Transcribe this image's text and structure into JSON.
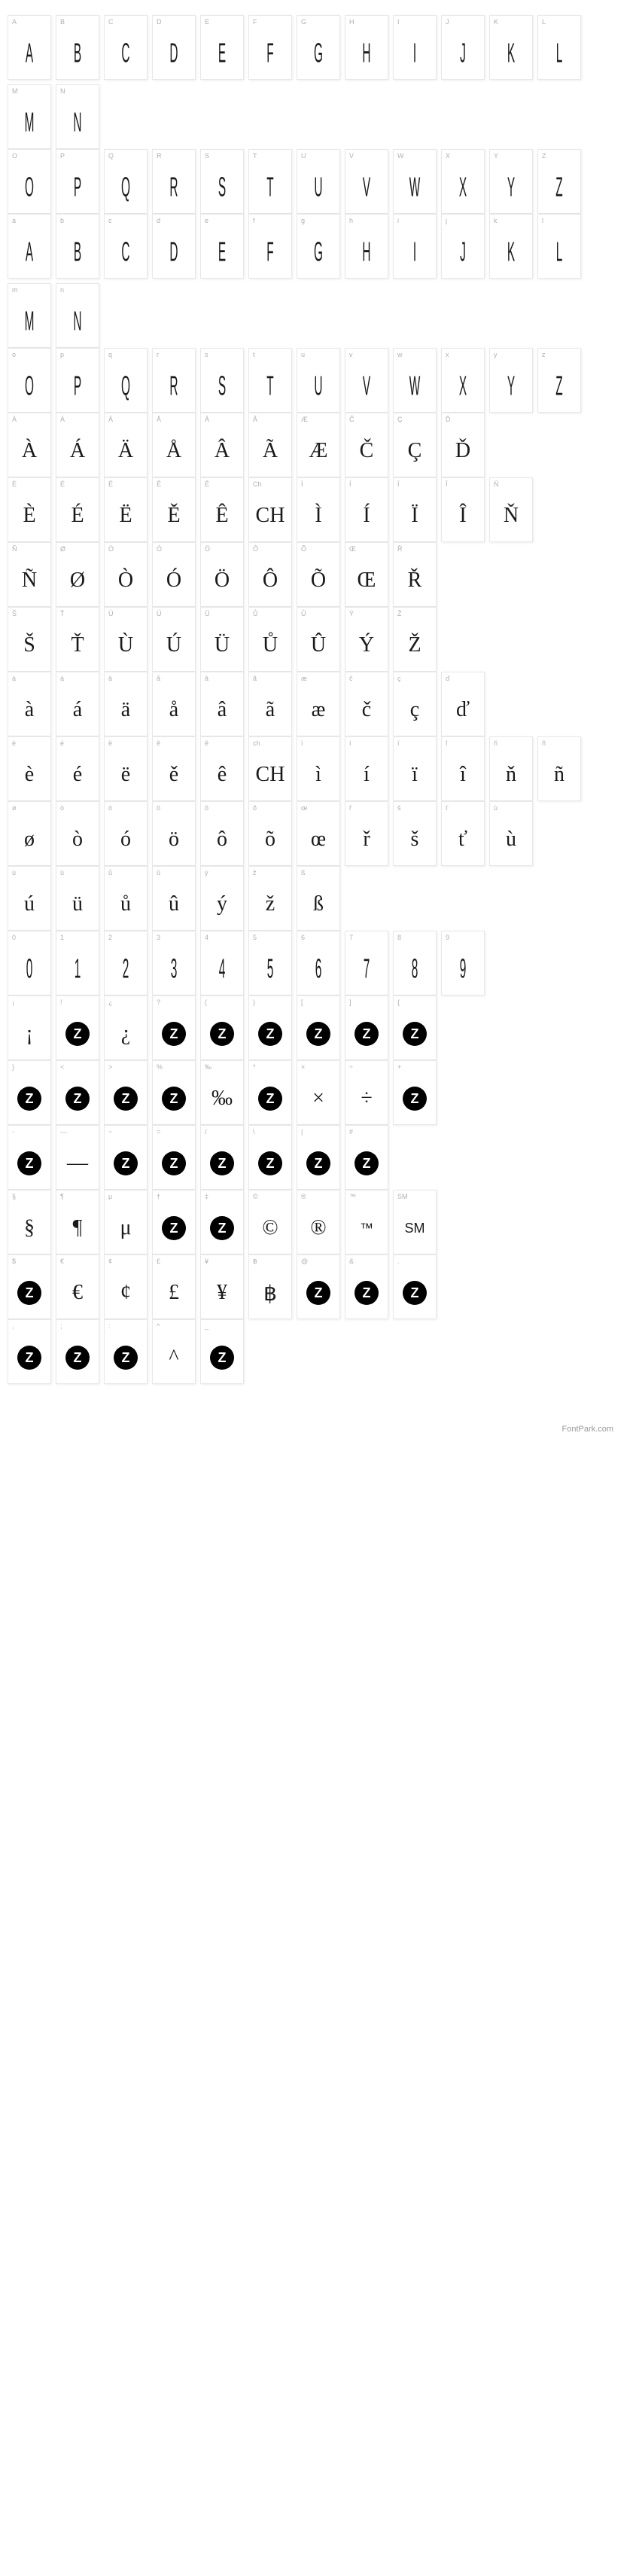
{
  "footer": "FontPark.com",
  "cell_bg": "#ffffff",
  "cell_border": "#e8e8e8",
  "label_color": "#b0b0b0",
  "glyph_color": "#1a1a1a",
  "icon_bg": "#000000",
  "icon_fg": "#ffffff",
  "rows": [
    {
      "style": "tall",
      "cells": [
        {
          "label": "A",
          "glyph": "A"
        },
        {
          "label": "B",
          "glyph": "B"
        },
        {
          "label": "C",
          "glyph": "C"
        },
        {
          "label": "D",
          "glyph": "D"
        },
        {
          "label": "E",
          "glyph": "E"
        },
        {
          "label": "F",
          "glyph": "F"
        },
        {
          "label": "G",
          "glyph": "G"
        },
        {
          "label": "H",
          "glyph": "H"
        },
        {
          "label": "I",
          "glyph": "I"
        },
        {
          "label": "J",
          "glyph": "J"
        },
        {
          "label": "K",
          "glyph": "K"
        },
        {
          "label": "L",
          "glyph": "L"
        },
        {
          "label": "M",
          "glyph": "M"
        },
        {
          "label": "N",
          "glyph": "N"
        }
      ]
    },
    {
      "style": "tall",
      "cells": [
        {
          "label": "O",
          "glyph": "O"
        },
        {
          "label": "P",
          "glyph": "P"
        },
        {
          "label": "Q",
          "glyph": "Q"
        },
        {
          "label": "R",
          "glyph": "R"
        },
        {
          "label": "S",
          "glyph": "S"
        },
        {
          "label": "T",
          "glyph": "T"
        },
        {
          "label": "U",
          "glyph": "U"
        },
        {
          "label": "V",
          "glyph": "V"
        },
        {
          "label": "W",
          "glyph": "W"
        },
        {
          "label": "X",
          "glyph": "X"
        },
        {
          "label": "Y",
          "glyph": "Y"
        },
        {
          "label": "Z",
          "glyph": "Z"
        }
      ]
    },
    {
      "style": "tall",
      "cells": [
        {
          "label": "a",
          "glyph": "A"
        },
        {
          "label": "b",
          "glyph": "B"
        },
        {
          "label": "c",
          "glyph": "C"
        },
        {
          "label": "d",
          "glyph": "D"
        },
        {
          "label": "e",
          "glyph": "E"
        },
        {
          "label": "f",
          "glyph": "F"
        },
        {
          "label": "g",
          "glyph": "G"
        },
        {
          "label": "h",
          "glyph": "H"
        },
        {
          "label": "i",
          "glyph": "I"
        },
        {
          "label": "j",
          "glyph": "J"
        },
        {
          "label": "k",
          "glyph": "K"
        },
        {
          "label": "l",
          "glyph": "L"
        },
        {
          "label": "m",
          "glyph": "M"
        },
        {
          "label": "n",
          "glyph": "N"
        }
      ]
    },
    {
      "style": "tall",
      "cells": [
        {
          "label": "o",
          "glyph": "O"
        },
        {
          "label": "p",
          "glyph": "P"
        },
        {
          "label": "q",
          "glyph": "Q"
        },
        {
          "label": "r",
          "glyph": "R"
        },
        {
          "label": "s",
          "glyph": "S"
        },
        {
          "label": "t",
          "glyph": "T"
        },
        {
          "label": "u",
          "glyph": "U"
        },
        {
          "label": "v",
          "glyph": "V"
        },
        {
          "label": "w",
          "glyph": "W"
        },
        {
          "label": "x",
          "glyph": "X"
        },
        {
          "label": "y",
          "glyph": "Y"
        },
        {
          "label": "z",
          "glyph": "Z"
        }
      ]
    },
    {
      "style": "serif",
      "cells": [
        {
          "label": "À",
          "glyph": "À"
        },
        {
          "label": "Á",
          "glyph": "Á"
        },
        {
          "label": "Ä",
          "glyph": "Ä"
        },
        {
          "label": "Å",
          "glyph": "Å"
        },
        {
          "label": "Â",
          "glyph": "Â"
        },
        {
          "label": "Ã",
          "glyph": "Ã"
        },
        {
          "label": "Æ",
          "glyph": "Æ"
        },
        {
          "label": "Č",
          "glyph": "Č"
        },
        {
          "label": "Ç",
          "glyph": "Ç"
        },
        {
          "label": "Ď",
          "glyph": "Ď"
        }
      ]
    },
    {
      "style": "serif",
      "cells": [
        {
          "label": "È",
          "glyph": "È"
        },
        {
          "label": "É",
          "glyph": "É"
        },
        {
          "label": "Ë",
          "glyph": "Ë"
        },
        {
          "label": "Ě",
          "glyph": "Ě"
        },
        {
          "label": "Ê",
          "glyph": "Ê"
        },
        {
          "label": "Ch",
          "glyph": "CH"
        },
        {
          "label": "Ì",
          "glyph": "Ì"
        },
        {
          "label": "Í",
          "glyph": "Í"
        },
        {
          "label": "Ï",
          "glyph": "Ï"
        },
        {
          "label": "Î",
          "glyph": "Î"
        },
        {
          "label": "Ň",
          "glyph": "Ň"
        }
      ]
    },
    {
      "style": "serif",
      "cells": [
        {
          "label": "Ñ",
          "glyph": "Ñ"
        },
        {
          "label": "Ø",
          "glyph": "Ø"
        },
        {
          "label": "Ò",
          "glyph": "Ò"
        },
        {
          "label": "Ó",
          "glyph": "Ó"
        },
        {
          "label": "Ö",
          "glyph": "Ö"
        },
        {
          "label": "Ô",
          "glyph": "Ô"
        },
        {
          "label": "Õ",
          "glyph": "Õ"
        },
        {
          "label": "Œ",
          "glyph": "Œ"
        },
        {
          "label": "Ř",
          "glyph": "Ř"
        }
      ]
    },
    {
      "style": "serif",
      "cells": [
        {
          "label": "Š",
          "glyph": "Š"
        },
        {
          "label": "Ť",
          "glyph": "Ť"
        },
        {
          "label": "Ù",
          "glyph": "Ù"
        },
        {
          "label": "Ú",
          "glyph": "Ú"
        },
        {
          "label": "Ü",
          "glyph": "Ü"
        },
        {
          "label": "Ů",
          "glyph": "Ů"
        },
        {
          "label": "Û",
          "glyph": "Û"
        },
        {
          "label": "Ý",
          "glyph": "Ý"
        },
        {
          "label": "Ž",
          "glyph": "Ž"
        }
      ]
    },
    {
      "style": "serif",
      "cells": [
        {
          "label": "à",
          "glyph": "à"
        },
        {
          "label": "á",
          "glyph": "á"
        },
        {
          "label": "ä",
          "glyph": "ä"
        },
        {
          "label": "å",
          "glyph": "å"
        },
        {
          "label": "â",
          "glyph": "â"
        },
        {
          "label": "ã",
          "glyph": "ã"
        },
        {
          "label": "æ",
          "glyph": "æ"
        },
        {
          "label": "č",
          "glyph": "č"
        },
        {
          "label": "ç",
          "glyph": "ç"
        },
        {
          "label": "ď",
          "glyph": "ď"
        }
      ]
    },
    {
      "style": "serif",
      "cells": [
        {
          "label": "è",
          "glyph": "è"
        },
        {
          "label": "é",
          "glyph": "é"
        },
        {
          "label": "ë",
          "glyph": "ë"
        },
        {
          "label": "ě",
          "glyph": "ě"
        },
        {
          "label": "ê",
          "glyph": "ê"
        },
        {
          "label": "ch",
          "glyph": "CH"
        },
        {
          "label": "ì",
          "glyph": "ì"
        },
        {
          "label": "í",
          "glyph": "í"
        },
        {
          "label": "ï",
          "glyph": "ï"
        },
        {
          "label": "î",
          "glyph": "î"
        },
        {
          "label": "ň",
          "glyph": "ň"
        },
        {
          "label": "ñ",
          "glyph": "ñ"
        }
      ]
    },
    {
      "style": "serif",
      "cells": [
        {
          "label": "ø",
          "glyph": "ø"
        },
        {
          "label": "ò",
          "glyph": "ò"
        },
        {
          "label": "ó",
          "glyph": "ó"
        },
        {
          "label": "ö",
          "glyph": "ö"
        },
        {
          "label": "ô",
          "glyph": "ô"
        },
        {
          "label": "õ",
          "glyph": "õ"
        },
        {
          "label": "œ",
          "glyph": "œ"
        },
        {
          "label": "ř",
          "glyph": "ř"
        },
        {
          "label": "š",
          "glyph": "š"
        },
        {
          "label": "ť",
          "glyph": "ť"
        },
        {
          "label": "ù",
          "glyph": "ù"
        }
      ]
    },
    {
      "style": "serif",
      "cells": [
        {
          "label": "ú",
          "glyph": "ú"
        },
        {
          "label": "ü",
          "glyph": "ü"
        },
        {
          "label": "ů",
          "glyph": "ů"
        },
        {
          "label": "û",
          "glyph": "û"
        },
        {
          "label": "ý",
          "glyph": "ý"
        },
        {
          "label": "ž",
          "glyph": "ž"
        },
        {
          "label": "ß",
          "glyph": "ß"
        }
      ]
    },
    {
      "style": "tall",
      "cells": [
        {
          "label": "0",
          "glyph": "0"
        },
        {
          "label": "1",
          "glyph": "1"
        },
        {
          "label": "2",
          "glyph": "2"
        },
        {
          "label": "3",
          "glyph": "3"
        },
        {
          "label": "4",
          "glyph": "4"
        },
        {
          "label": "5",
          "glyph": "5"
        },
        {
          "label": "6",
          "glyph": "6"
        },
        {
          "label": "7",
          "glyph": "7"
        },
        {
          "label": "8",
          "glyph": "8"
        },
        {
          "label": "9",
          "glyph": "9"
        }
      ]
    },
    {
      "style": "mixed",
      "cells": [
        {
          "label": "¡",
          "glyph": "¡",
          "type": "serif"
        },
        {
          "label": "!",
          "glyph": "Z",
          "type": "zicon"
        },
        {
          "label": "¿",
          "glyph": "¿",
          "type": "serif"
        },
        {
          "label": "?",
          "glyph": "Z",
          "type": "zicon"
        },
        {
          "label": "(",
          "glyph": "Z",
          "type": "zicon"
        },
        {
          "label": ")",
          "glyph": "Z",
          "type": "zicon"
        },
        {
          "label": "[",
          "glyph": "Z",
          "type": "zicon"
        },
        {
          "label": "]",
          "glyph": "Z",
          "type": "zicon"
        },
        {
          "label": "{",
          "glyph": "Z",
          "type": "zicon"
        }
      ]
    },
    {
      "style": "mixed",
      "cells": [
        {
          "label": "}",
          "glyph": "Z",
          "type": "zicon"
        },
        {
          "label": "<",
          "glyph": "Z",
          "type": "zicon"
        },
        {
          "label": ">",
          "glyph": "Z",
          "type": "zicon"
        },
        {
          "label": "%",
          "glyph": "Z",
          "type": "zicon"
        },
        {
          "label": "‰",
          "glyph": "‰",
          "type": "serif"
        },
        {
          "label": "*",
          "glyph": "Z",
          "type": "zicon"
        },
        {
          "label": "×",
          "glyph": "×",
          "type": "serif"
        },
        {
          "label": "÷",
          "glyph": "÷",
          "type": "serif"
        },
        {
          "label": "+",
          "glyph": "Z",
          "type": "zicon"
        }
      ]
    },
    {
      "style": "mixed",
      "cells": [
        {
          "label": "-",
          "glyph": "Z",
          "type": "zicon"
        },
        {
          "label": "—",
          "glyph": "—",
          "type": "serif"
        },
        {
          "label": "~",
          "glyph": "Z",
          "type": "zicon"
        },
        {
          "label": "=",
          "glyph": "Z",
          "type": "zicon"
        },
        {
          "label": "/",
          "glyph": "Z",
          "type": "zicon"
        },
        {
          "label": "\\",
          "glyph": "Z",
          "type": "zicon"
        },
        {
          "label": "|",
          "glyph": "Z",
          "type": "zicon"
        },
        {
          "label": "#",
          "glyph": "Z",
          "type": "zicon"
        }
      ]
    },
    {
      "style": "mixed",
      "cells": [
        {
          "label": "§",
          "glyph": "§",
          "type": "serif"
        },
        {
          "label": "¶",
          "glyph": "¶",
          "type": "serif"
        },
        {
          "label": "μ",
          "glyph": "μ",
          "type": "serif"
        },
        {
          "label": "†",
          "glyph": "Z",
          "type": "zicon"
        },
        {
          "label": "‡",
          "glyph": "Z",
          "type": "zicon"
        },
        {
          "label": "©",
          "glyph": "©",
          "type": "serif"
        },
        {
          "label": "®",
          "glyph": "®",
          "type": "serif"
        },
        {
          "label": "™",
          "glyph": "™",
          "type": "serif"
        },
        {
          "label": "SM",
          "glyph": "SM",
          "type": "serif"
        }
      ]
    },
    {
      "style": "mixed",
      "cells": [
        {
          "label": "$",
          "glyph": "Z",
          "type": "zicon"
        },
        {
          "label": "€",
          "glyph": "€",
          "type": "serif"
        },
        {
          "label": "¢",
          "glyph": "¢",
          "type": "serif"
        },
        {
          "label": "£",
          "glyph": "£",
          "type": "serif"
        },
        {
          "label": "¥",
          "glyph": "¥",
          "type": "serif"
        },
        {
          "label": "฿",
          "glyph": "฿",
          "type": "serif"
        },
        {
          "label": "@",
          "glyph": "Z",
          "type": "zicon"
        },
        {
          "label": "&",
          "glyph": "Z",
          "type": "zicon"
        },
        {
          "label": ".",
          "glyph": "Z",
          "type": "zicon"
        }
      ]
    },
    {
      "style": "mixed",
      "cells": [
        {
          "label": ",",
          "glyph": "Z",
          "type": "zicon"
        },
        {
          "label": ";",
          "glyph": "Z",
          "type": "zicon"
        },
        {
          "label": ":",
          "glyph": "Z",
          "type": "zicon"
        },
        {
          "label": "^",
          "glyph": "^",
          "type": "serif"
        },
        {
          "label": "_",
          "glyph": "Z",
          "type": "zicon"
        }
      ]
    }
  ]
}
